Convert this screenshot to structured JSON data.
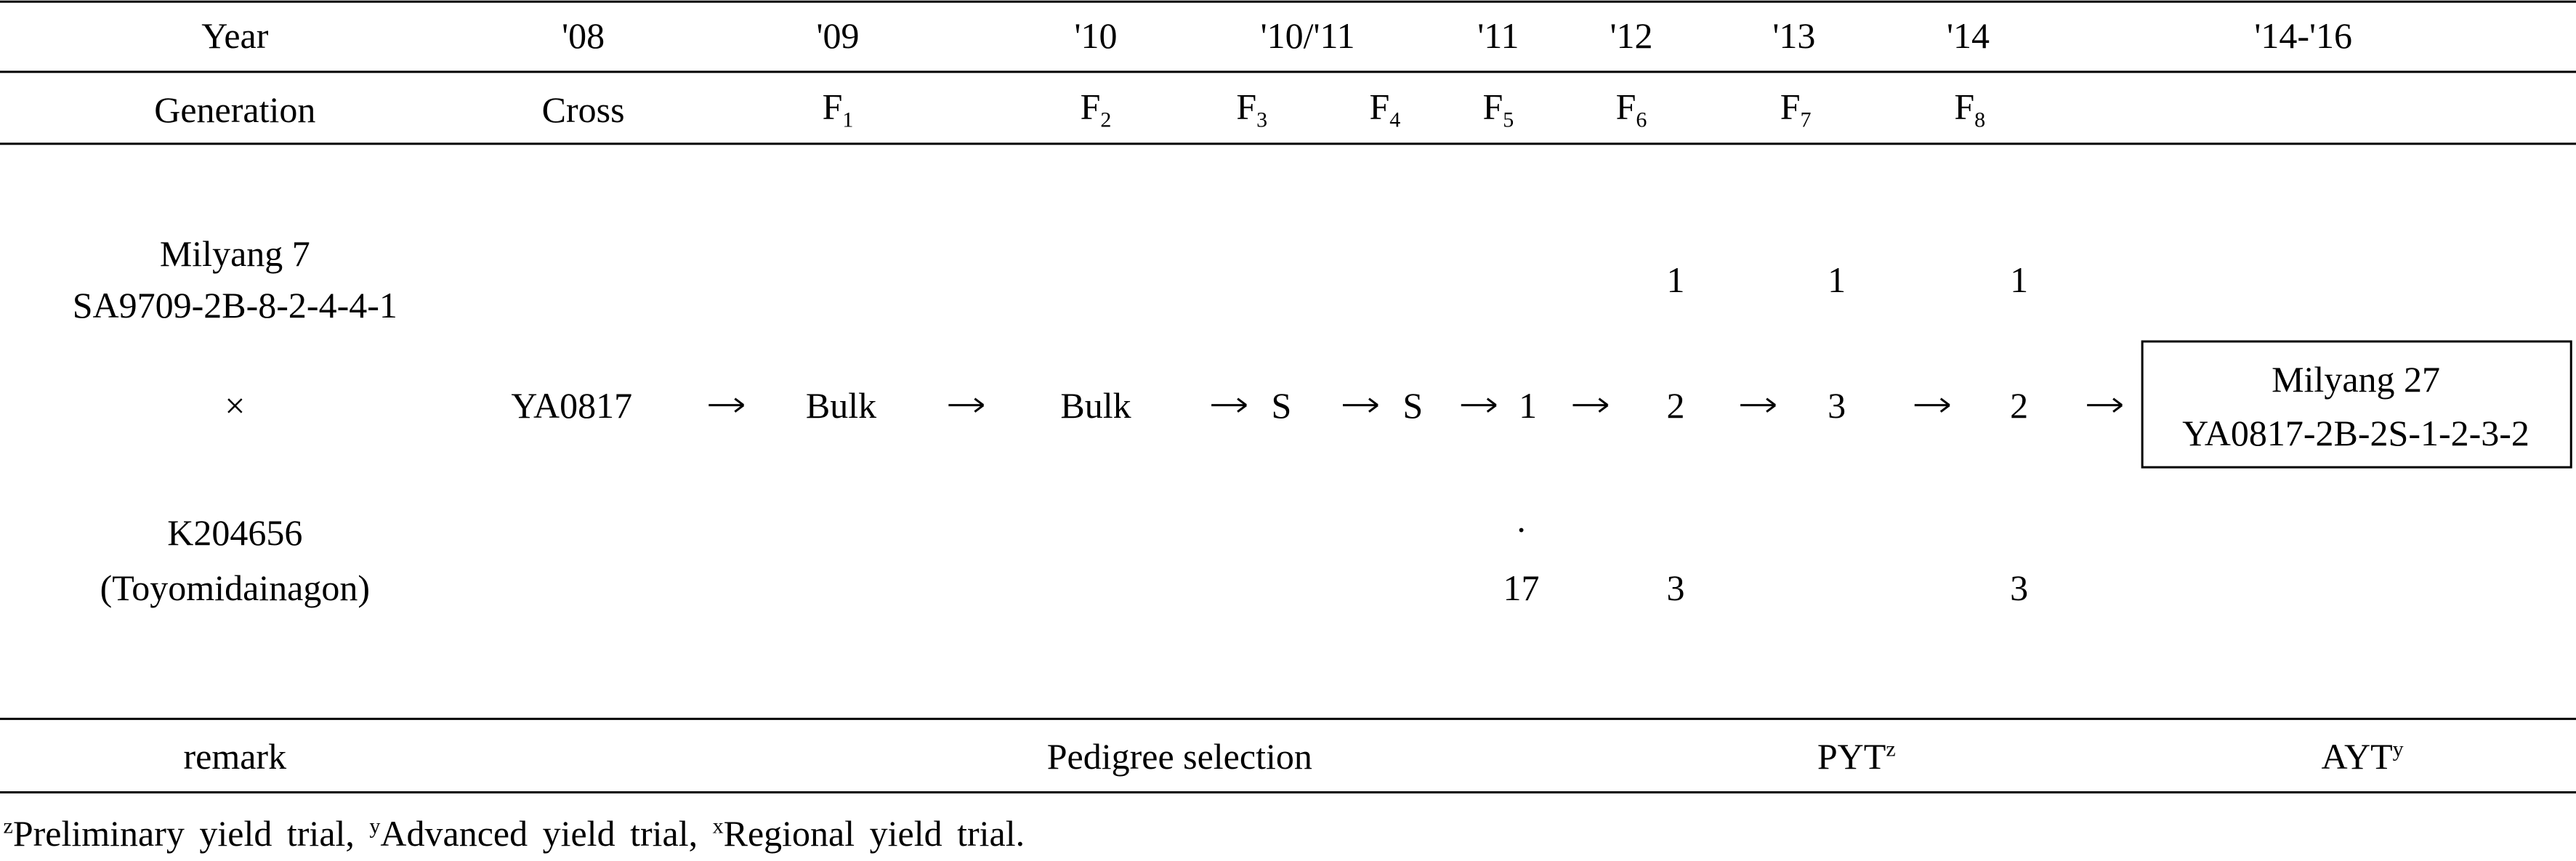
{
  "header": {
    "year_label": "Year",
    "years": [
      "'08",
      "'09",
      "'10",
      "'10/'11",
      "'11",
      "'12",
      "'13",
      "'14",
      "'14-'16"
    ],
    "generation_label": "Generation",
    "generations": [
      "Cross",
      {
        "base": "F",
        "sub": "1"
      },
      {
        "base": "F",
        "sub": "2"
      },
      {
        "base": "F",
        "sub": "3"
      },
      {
        "base": "F",
        "sub": "4"
      },
      {
        "base": "F",
        "sub": "5"
      },
      {
        "base": "F",
        "sub": "6"
      },
      {
        "base": "F",
        "sub": "7"
      },
      {
        "base": "F",
        "sub": "8"
      }
    ]
  },
  "parents": {
    "female": [
      "Milyang 7",
      "SA9709-2B-8-2-4-4-1"
    ],
    "cross_symbol": "×",
    "male": [
      "K204656",
      "(Toyomidainagon)"
    ]
  },
  "flow": {
    "steps": [
      "YA0817",
      "Bulk",
      "Bulk",
      "S",
      "S",
      "1",
      "2",
      "3",
      "2"
    ],
    "above": [
      "1",
      "1",
      "1"
    ],
    "below": [
      "·",
      "17",
      "3",
      "3"
    ],
    "result": [
      "Milyang 27",
      "YA0817-2B-2S-1-2-3-2"
    ]
  },
  "remark": {
    "label": "remark",
    "pedigree": "Pedigree selection",
    "pyt": {
      "text": "PYT",
      "sup": "z"
    },
    "ayt": {
      "text": "AYT",
      "sup": "y"
    }
  },
  "footnote": [
    {
      "sup": "z",
      "text": "Preliminary yield trial, "
    },
    {
      "sup": "y",
      "text": "Advanced yield trial, "
    },
    {
      "sup": "x",
      "text": "Regional yield trial."
    }
  ]
}
